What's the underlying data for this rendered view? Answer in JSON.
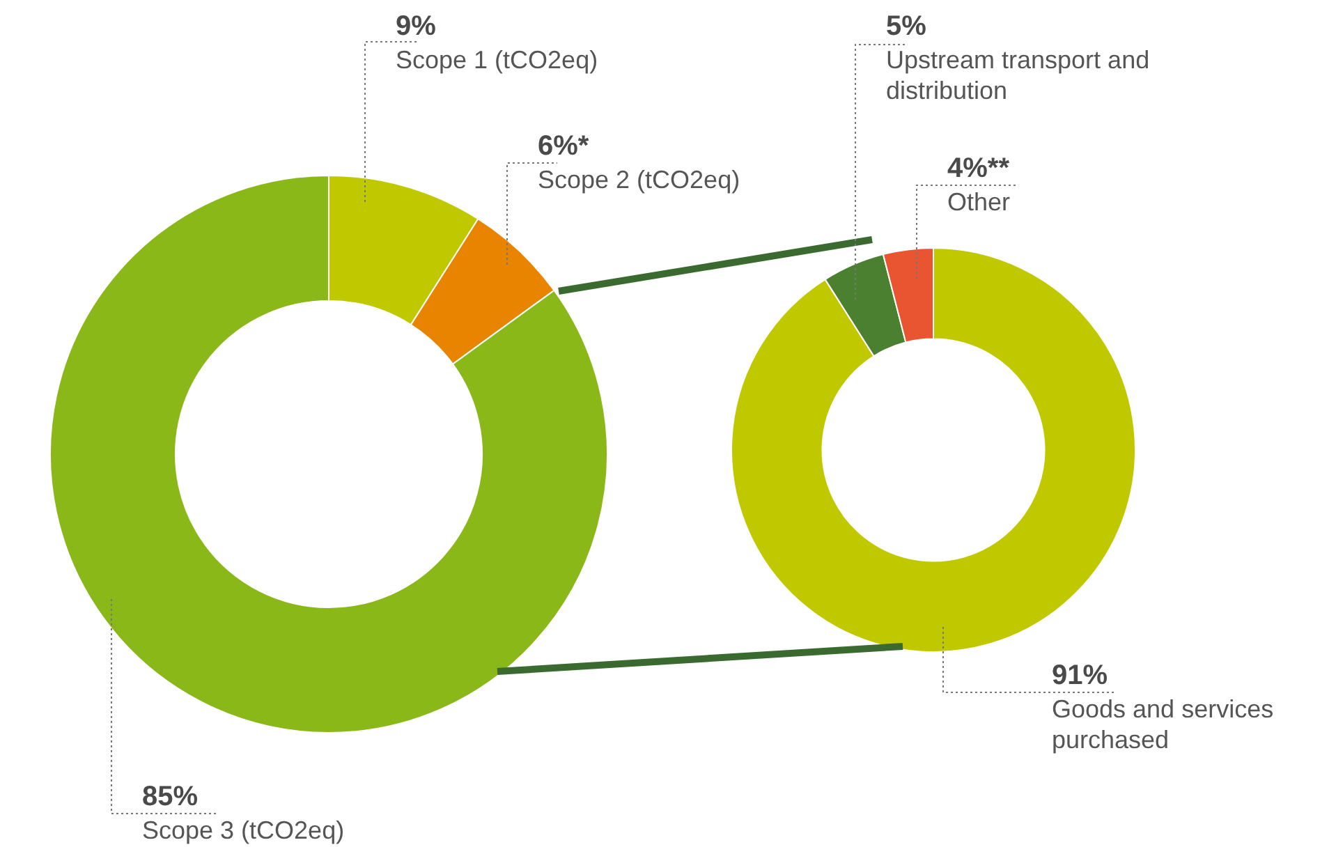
{
  "chart_data": [
    {
      "type": "donut",
      "categories": [
        "Scope 1 (tCO2eq)",
        "Scope 2 (tCO2eq)",
        "Scope 3 (tCO2eq)"
      ],
      "values": [
        9,
        6,
        85
      ],
      "colors": [
        "#c0c800",
        "#e88400",
        "#8ab818"
      ],
      "value_labels": [
        "9%",
        "6%*",
        "85%"
      ],
      "legend": false
    },
    {
      "type": "donut",
      "categories": [
        "Goods and services purchased",
        "Upstream transport and distribution",
        "Other"
      ],
      "values": [
        91,
        5,
        4
      ],
      "colors": [
        "#c0c800",
        "#4a8030",
        "#e85530"
      ],
      "value_labels": [
        "91%",
        "5%",
        "4%**"
      ],
      "legend": false
    }
  ]
}
